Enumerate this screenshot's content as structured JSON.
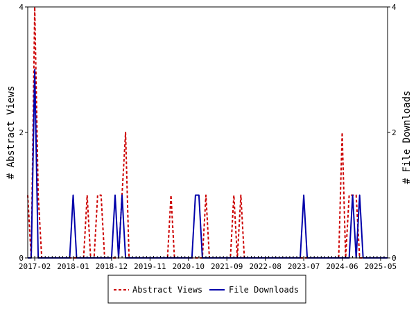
{
  "chart_data": {
    "type": "line",
    "x_ticks": [
      "2017-02",
      "2018-01",
      "2018-12",
      "2019-11",
      "2020-10",
      "2021-09",
      "2022-08",
      "2023-07",
      "2024-06",
      "2025-05"
    ],
    "y_left": {
      "label": "# Abstract Views",
      "lim": [
        0,
        4
      ],
      "ticks": [
        "0",
        "2",
        "4"
      ]
    },
    "y_right": {
      "label": "# File Downloads",
      "lim": [
        0,
        4
      ],
      "ticks": [
        "0",
        "2",
        "4"
      ]
    },
    "grid": false,
    "legend": "bottom",
    "series": [
      {
        "name": "Abstract Views",
        "color": "#cc0000",
        "style": "dashed",
        "axis": "left",
        "x": [
          "2016-12",
          "2017-01",
          "2017-02",
          "2017-03",
          "2017-04",
          "2017-05",
          "2017-06",
          "2017-07",
          "2017-08",
          "2017-09",
          "2017-10",
          "2017-11",
          "2017-12",
          "2018-01",
          "2018-02",
          "2018-03",
          "2018-04",
          "2018-05",
          "2018-06",
          "2018-07",
          "2018-08",
          "2018-09",
          "2018-10",
          "2018-11",
          "2018-12",
          "2019-01",
          "2019-02",
          "2019-03",
          "2019-04",
          "2019-05",
          "2019-06",
          "2019-07",
          "2019-08",
          "2019-09",
          "2019-10",
          "2019-11",
          "2019-12",
          "2020-01",
          "2020-02",
          "2020-03",
          "2020-04",
          "2020-05",
          "2020-06",
          "2020-07",
          "2020-08",
          "2020-09",
          "2020-10",
          "2020-11",
          "2020-12",
          "2021-01",
          "2021-02",
          "2021-03",
          "2021-04",
          "2021-05",
          "2021-06",
          "2021-07",
          "2021-08",
          "2021-09",
          "2021-10",
          "2021-11",
          "2021-12",
          "2022-01",
          "2022-02",
          "2022-03",
          "2022-04",
          "2022-05",
          "2022-06",
          "2022-07",
          "2022-08",
          "2022-09",
          "2022-10",
          "2022-11",
          "2022-12",
          "2023-01",
          "2023-02",
          "2023-03",
          "2023-04",
          "2023-05",
          "2023-06",
          "2023-07",
          "2023-08",
          "2023-09",
          "2023-10",
          "2023-11",
          "2023-12",
          "2024-01",
          "2024-02",
          "2024-03",
          "2024-04",
          "2024-05",
          "2024-06",
          "2024-07",
          "2024-08",
          "2024-09",
          "2024-10",
          "2024-11",
          "2024-12",
          "2025-01",
          "2025-02",
          "2025-03",
          "2025-04",
          "2025-05",
          "2025-06",
          "2025-07"
        ],
        "values": [
          1,
          0,
          4,
          1,
          0,
          0,
          0,
          0,
          0,
          0,
          0,
          0,
          0,
          0,
          0,
          0,
          0,
          1,
          0,
          0,
          1,
          1,
          0,
          0,
          0,
          0,
          0,
          1,
          2,
          0,
          0,
          0,
          0,
          0,
          0,
          0,
          0,
          0,
          0,
          0,
          0,
          1,
          0,
          0,
          0,
          0,
          0,
          0,
          0,
          0,
          0,
          1,
          0,
          0,
          0,
          0,
          0,
          0,
          0,
          1,
          0,
          1,
          0,
          0,
          0,
          0,
          0,
          0,
          0,
          0,
          0,
          0,
          0,
          0,
          0,
          0,
          0,
          0,
          0,
          0,
          0,
          0,
          0,
          0,
          0,
          0,
          0,
          0,
          0,
          0,
          2,
          0,
          1,
          1,
          1,
          0,
          0,
          0,
          0,
          0,
          0,
          0,
          0,
          0
        ]
      },
      {
        "name": "File Downloads",
        "color": "#0000aa",
        "style": "solid",
        "axis": "right",
        "x": [
          "2016-12",
          "2017-01",
          "2017-02",
          "2017-03",
          "2017-04",
          "2017-05",
          "2017-06",
          "2017-07",
          "2017-08",
          "2017-09",
          "2017-10",
          "2017-11",
          "2017-12",
          "2018-01",
          "2018-02",
          "2018-03",
          "2018-04",
          "2018-05",
          "2018-06",
          "2018-07",
          "2018-08",
          "2018-09",
          "2018-10",
          "2018-11",
          "2018-12",
          "2019-01",
          "2019-02",
          "2019-03",
          "2019-04",
          "2019-05",
          "2019-06",
          "2019-07",
          "2019-08",
          "2019-09",
          "2019-10",
          "2019-11",
          "2019-12",
          "2020-01",
          "2020-02",
          "2020-03",
          "2020-04",
          "2020-05",
          "2020-06",
          "2020-07",
          "2020-08",
          "2020-09",
          "2020-10",
          "2020-11",
          "2020-12",
          "2021-01",
          "2021-02",
          "2021-03",
          "2021-04",
          "2021-05",
          "2021-06",
          "2021-07",
          "2021-08",
          "2021-09",
          "2021-10",
          "2021-11",
          "2021-12",
          "2022-01",
          "2022-02",
          "2022-03",
          "2022-04",
          "2022-05",
          "2022-06",
          "2022-07",
          "2022-08",
          "2022-09",
          "2022-10",
          "2022-11",
          "2022-12",
          "2023-01",
          "2023-02",
          "2023-03",
          "2023-04",
          "2023-05",
          "2023-06",
          "2023-07",
          "2023-08",
          "2023-09",
          "2023-10",
          "2023-11",
          "2023-12",
          "2024-01",
          "2024-02",
          "2024-03",
          "2024-04",
          "2024-05",
          "2024-06",
          "2024-07",
          "2024-08",
          "2024-09",
          "2024-10",
          "2024-11",
          "2024-12",
          "2025-01",
          "2025-02",
          "2025-03",
          "2025-04",
          "2025-05",
          "2025-06",
          "2025-07"
        ],
        "values": [
          0,
          0,
          3,
          0,
          0,
          0,
          0,
          0,
          0,
          0,
          0,
          0,
          0,
          1,
          0,
          0,
          0,
          0,
          0,
          0,
          0,
          0,
          0,
          0,
          0,
          1,
          0,
          1,
          0,
          0,
          0,
          0,
          0,
          0,
          0,
          0,
          0,
          0,
          0,
          0,
          0,
          0,
          0,
          0,
          0,
          0,
          0,
          0,
          1,
          1,
          0,
          0,
          0,
          0,
          0,
          0,
          0,
          0,
          0,
          0,
          0,
          0,
          0,
          0,
          0,
          0,
          0,
          0,
          0,
          0,
          0,
          0,
          0,
          0,
          0,
          0,
          0,
          0,
          0,
          1,
          0,
          0,
          0,
          0,
          0,
          0,
          0,
          0,
          0,
          0,
          0,
          0,
          0,
          1,
          0,
          1,
          0,
          0,
          0,
          0,
          0,
          0,
          0,
          0
        ]
      }
    ]
  }
}
